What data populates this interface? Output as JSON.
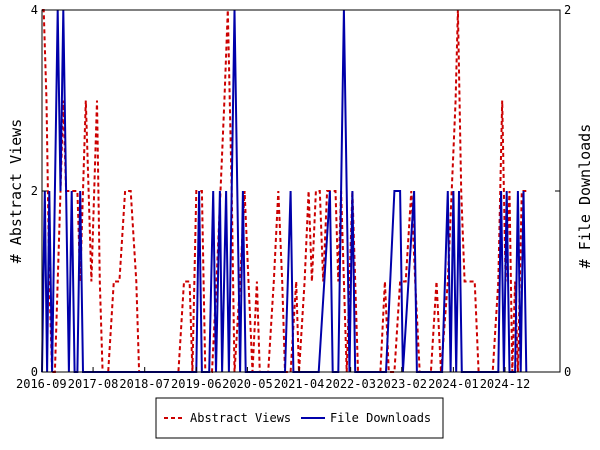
{
  "chart_data": {
    "type": "line",
    "ylabel_left": "# Abstract Views",
    "ylabel_right": "# File Downloads",
    "ylim_left": [
      0,
      4
    ],
    "ylim_right": [
      0,
      2
    ],
    "yticks_left": [
      "0",
      "2",
      "4"
    ],
    "yticks_right": [
      "0",
      "1",
      "2"
    ],
    "x_range": [
      2016.67,
      2025.9
    ],
    "xticks": [
      {
        "label": "2016-09",
        "x": 2016.67
      },
      {
        "label": "2017-08",
        "x": 2017.58
      },
      {
        "label": "2018-07",
        "x": 2018.5
      },
      {
        "label": "2019-06",
        "x": 2019.42
      },
      {
        "label": "2020-05",
        "x": 2020.33
      },
      {
        "label": "2021-04",
        "x": 2021.25
      },
      {
        "label": "2022-03",
        "x": 2022.17
      },
      {
        "label": "2023-02",
        "x": 2023.08
      },
      {
        "label": "2024-01",
        "x": 2024.0
      },
      {
        "label": "2024-12",
        "x": 2024.92
      }
    ],
    "grid": false,
    "legend_position": "bottom-center",
    "series": [
      {
        "name": "Abstract Views",
        "axis": "left",
        "color": "#cc0000",
        "dash": "4,3",
        "points": [
          [
            2016.67,
            4
          ],
          [
            2016.7,
            4
          ],
          [
            2016.75,
            3
          ],
          [
            2016.8,
            1
          ],
          [
            2016.85,
            0
          ],
          [
            2016.9,
            0
          ],
          [
            2016.95,
            1
          ],
          [
            2017.0,
            2
          ],
          [
            2017.05,
            3
          ],
          [
            2017.1,
            2
          ],
          [
            2017.2,
            2
          ],
          [
            2017.3,
            2
          ],
          [
            2017.35,
            1
          ],
          [
            2017.4,
            2
          ],
          [
            2017.45,
            3
          ],
          [
            2017.5,
            2
          ],
          [
            2017.55,
            1
          ],
          [
            2017.6,
            2
          ],
          [
            2017.65,
            3
          ],
          [
            2017.7,
            1
          ],
          [
            2017.75,
            0
          ],
          [
            2017.85,
            0
          ],
          [
            2017.95,
            1
          ],
          [
            2018.05,
            1
          ],
          [
            2018.15,
            2
          ],
          [
            2018.25,
            2
          ],
          [
            2018.35,
            1
          ],
          [
            2018.4,
            0
          ],
          [
            2018.6,
            0
          ],
          [
            2018.8,
            0
          ],
          [
            2019.0,
            0
          ],
          [
            2019.1,
            0
          ],
          [
            2019.2,
            1
          ],
          [
            2019.3,
            1
          ],
          [
            2019.35,
            0
          ],
          [
            2019.42,
            2
          ],
          [
            2019.52,
            2
          ],
          [
            2019.58,
            0
          ],
          [
            2019.7,
            0
          ],
          [
            2019.78,
            1
          ],
          [
            2019.85,
            2
          ],
          [
            2019.92,
            3
          ],
          [
            2019.98,
            4
          ],
          [
            2020.05,
            2
          ],
          [
            2020.1,
            0
          ],
          [
            2020.2,
            1
          ],
          [
            2020.28,
            2
          ],
          [
            2020.35,
            1
          ],
          [
            2020.42,
            0
          ],
          [
            2020.5,
            1
          ],
          [
            2020.55,
            0
          ],
          [
            2020.7,
            0
          ],
          [
            2020.8,
            1
          ],
          [
            2020.88,
            2
          ],
          [
            2020.95,
            1
          ],
          [
            2021.0,
            0
          ],
          [
            2021.1,
            0
          ],
          [
            2021.2,
            1
          ],
          [
            2021.25,
            0
          ],
          [
            2021.35,
            1
          ],
          [
            2021.42,
            2
          ],
          [
            2021.48,
            1
          ],
          [
            2021.55,
            2
          ],
          [
            2021.62,
            2
          ],
          [
            2021.68,
            1
          ],
          [
            2021.75,
            2
          ],
          [
            2021.82,
            2
          ],
          [
            2021.9,
            2
          ],
          [
            2021.95,
            1
          ],
          [
            2022.0,
            2
          ],
          [
            2022.05,
            1
          ],
          [
            2022.1,
            0
          ],
          [
            2022.15,
            1
          ],
          [
            2022.2,
            2
          ],
          [
            2022.25,
            1
          ],
          [
            2022.3,
            0
          ],
          [
            2022.4,
            0
          ],
          [
            2022.5,
            0
          ],
          [
            2022.7,
            0
          ],
          [
            2022.78,
            1
          ],
          [
            2022.85,
            0
          ],
          [
            2022.95,
            0
          ],
          [
            2023.05,
            1
          ],
          [
            2023.15,
            1
          ],
          [
            2023.25,
            2
          ],
          [
            2023.32,
            1
          ],
          [
            2023.4,
            0
          ],
          [
            2023.6,
            0
          ],
          [
            2023.7,
            1
          ],
          [
            2023.78,
            0
          ],
          [
            2023.9,
            1
          ],
          [
            2023.97,
            2
          ],
          [
            2024.04,
            3
          ],
          [
            2024.08,
            4
          ],
          [
            2024.14,
            2
          ],
          [
            2024.2,
            1
          ],
          [
            2024.28,
            1
          ],
          [
            2024.38,
            1
          ],
          [
            2024.45,
            0
          ],
          [
            2024.6,
            0
          ],
          [
            2024.7,
            0
          ],
          [
            2024.8,
            1
          ],
          [
            2024.87,
            3
          ],
          [
            2024.93,
            1
          ],
          [
            2025.0,
            2
          ],
          [
            2025.05,
            0
          ],
          [
            2025.1,
            1
          ],
          [
            2025.15,
            0
          ],
          [
            2025.22,
            2
          ],
          [
            2025.3,
            2
          ]
        ]
      },
      {
        "name": "File Downloads",
        "axis": "right",
        "color": "#0000aa",
        "dash": "",
        "points": [
          [
            2016.67,
            0
          ],
          [
            2016.72,
            1
          ],
          [
            2016.76,
            0
          ],
          [
            2016.8,
            1
          ],
          [
            2016.85,
            0
          ],
          [
            2016.9,
            1
          ],
          [
            2016.95,
            2
          ],
          [
            2017.0,
            1
          ],
          [
            2017.05,
            2
          ],
          [
            2017.1,
            1
          ],
          [
            2017.15,
            0
          ],
          [
            2017.2,
            1
          ],
          [
            2017.25,
            0
          ],
          [
            2017.3,
            0
          ],
          [
            2017.35,
            1
          ],
          [
            2017.4,
            0
          ],
          [
            2017.6,
            0
          ],
          [
            2017.8,
            0
          ],
          [
            2018.0,
            0
          ],
          [
            2018.5,
            0
          ],
          [
            2019.0,
            0
          ],
          [
            2019.42,
            0
          ],
          [
            2019.47,
            1
          ],
          [
            2019.52,
            0
          ],
          [
            2019.65,
            0
          ],
          [
            2019.72,
            1
          ],
          [
            2019.77,
            0
          ],
          [
            2019.84,
            1
          ],
          [
            2019.88,
            0
          ],
          [
            2019.95,
            1
          ],
          [
            2020.0,
            0
          ],
          [
            2020.05,
            1
          ],
          [
            2020.1,
            2
          ],
          [
            2020.15,
            1
          ],
          [
            2020.2,
            0
          ],
          [
            2020.25,
            1
          ],
          [
            2020.3,
            0
          ],
          [
            2020.5,
            0
          ],
          [
            2020.8,
            0
          ],
          [
            2021.0,
            0
          ],
          [
            2021.1,
            1
          ],
          [
            2021.15,
            0
          ],
          [
            2021.4,
            0
          ],
          [
            2021.6,
            0
          ],
          [
            2021.8,
            1
          ],
          [
            2021.85,
            0
          ],
          [
            2021.95,
            0
          ],
          [
            2022.0,
            1
          ],
          [
            2022.05,
            2
          ],
          [
            2022.1,
            1
          ],
          [
            2022.15,
            0
          ],
          [
            2022.2,
            1
          ],
          [
            2022.25,
            0
          ],
          [
            2022.6,
            0
          ],
          [
            2022.8,
            0
          ],
          [
            2022.95,
            1
          ],
          [
            2023.05,
            1
          ],
          [
            2023.1,
            0
          ],
          [
            2023.3,
            1
          ],
          [
            2023.35,
            0
          ],
          [
            2023.4,
            0
          ],
          [
            2023.8,
            0
          ],
          [
            2023.9,
            1
          ],
          [
            2023.95,
            0
          ],
          [
            2024.0,
            1
          ],
          [
            2024.05,
            0
          ],
          [
            2024.1,
            1
          ],
          [
            2024.15,
            0
          ],
          [
            2024.2,
            0
          ],
          [
            2024.6,
            0
          ],
          [
            2024.8,
            0
          ],
          [
            2024.85,
            1
          ],
          [
            2024.9,
            0
          ],
          [
            2024.95,
            1
          ],
          [
            2025.0,
            0
          ],
          [
            2025.1,
            0
          ],
          [
            2025.15,
            1
          ],
          [
            2025.2,
            0
          ],
          [
            2025.25,
            1
          ],
          [
            2025.3,
            0
          ]
        ]
      }
    ]
  }
}
